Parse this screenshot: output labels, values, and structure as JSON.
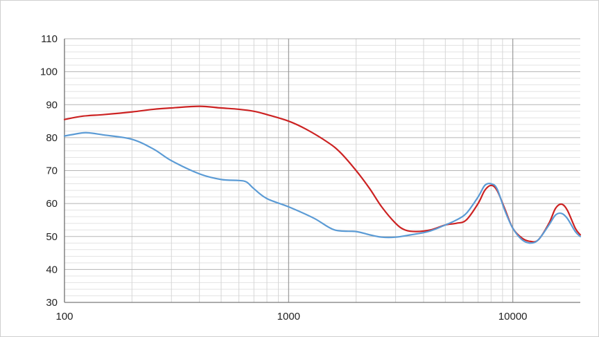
{
  "chart_data": {
    "type": "line",
    "title": "",
    "xlabel": "",
    "ylabel": "",
    "x_scale": "log",
    "xlim": [
      100,
      20000
    ],
    "ylim": [
      30,
      110
    ],
    "y_ticks": [
      30,
      40,
      50,
      60,
      70,
      80,
      90,
      100,
      110
    ],
    "y_tick_labels": [
      "30",
      "40",
      "50",
      "60",
      "70",
      "80",
      "90",
      "100",
      "110"
    ],
    "x_major_ticks": [
      100,
      1000,
      10000
    ],
    "x_tick_labels": [
      "100",
      "1000",
      "10000"
    ],
    "x_minor_ticks": [
      200,
      300,
      400,
      500,
      600,
      700,
      800,
      900,
      2000,
      3000,
      4000,
      5000,
      6000,
      7000,
      8000,
      9000,
      20000
    ],
    "y_minor_step": 2,
    "grid": true,
    "legend": "none",
    "series": [
      {
        "color": "#cc2222",
        "points": [
          [
            100,
            85.5
          ],
          [
            120,
            86.5
          ],
          [
            150,
            87.0
          ],
          [
            200,
            87.8
          ],
          [
            250,
            88.6
          ],
          [
            300,
            89.0
          ],
          [
            400,
            89.5
          ],
          [
            500,
            89.0
          ],
          [
            600,
            88.6
          ],
          [
            700,
            88.0
          ],
          [
            800,
            87.0
          ],
          [
            1000,
            85.0
          ],
          [
            1200,
            82.5
          ],
          [
            1500,
            78.5
          ],
          [
            1700,
            75.5
          ],
          [
            2000,
            70.0
          ],
          [
            2300,
            64.5
          ],
          [
            2600,
            59.0
          ],
          [
            3000,
            54.0
          ],
          [
            3300,
            52.0
          ],
          [
            3700,
            51.5
          ],
          [
            4300,
            52.0
          ],
          [
            5000,
            53.5
          ],
          [
            5600,
            54.0
          ],
          [
            6200,
            55.0
          ],
          [
            7000,
            60.0
          ],
          [
            7500,
            64.0
          ],
          [
            8000,
            65.5
          ],
          [
            8500,
            64.0
          ],
          [
            9200,
            58.5
          ],
          [
            10000,
            52.5
          ],
          [
            11000,
            49.5
          ],
          [
            12000,
            48.5
          ],
          [
            13000,
            49.0
          ],
          [
            14500,
            54.0
          ],
          [
            15500,
            58.5
          ],
          [
            16500,
            59.8
          ],
          [
            17500,
            58.0
          ],
          [
            19000,
            52.5
          ],
          [
            20000,
            50.5
          ]
        ]
      },
      {
        "color": "#5b9bd5",
        "points": [
          [
            100,
            80.5
          ],
          [
            110,
            81.0
          ],
          [
            125,
            81.5
          ],
          [
            150,
            80.8
          ],
          [
            200,
            79.5
          ],
          [
            250,
            76.5
          ],
          [
            300,
            73.0
          ],
          [
            400,
            69.0
          ],
          [
            500,
            67.3
          ],
          [
            600,
            67.0
          ],
          [
            650,
            66.5
          ],
          [
            700,
            64.5
          ],
          [
            800,
            61.5
          ],
          [
            1000,
            59.0
          ],
          [
            1300,
            55.5
          ],
          [
            1600,
            52.0
          ],
          [
            2000,
            51.5
          ],
          [
            2300,
            50.5
          ],
          [
            2600,
            49.8
          ],
          [
            3000,
            49.8
          ],
          [
            3500,
            50.5
          ],
          [
            4200,
            51.5
          ],
          [
            5000,
            53.5
          ],
          [
            5600,
            55.0
          ],
          [
            6200,
            57.0
          ],
          [
            7000,
            62.0
          ],
          [
            7500,
            65.5
          ],
          [
            8000,
            66.0
          ],
          [
            8500,
            64.5
          ],
          [
            9200,
            58.0
          ],
          [
            10000,
            52.5
          ],
          [
            11000,
            49.0
          ],
          [
            12000,
            48.0
          ],
          [
            13000,
            49.0
          ],
          [
            14500,
            53.5
          ],
          [
            15500,
            56.5
          ],
          [
            16500,
            57.0
          ],
          [
            17500,
            55.5
          ],
          [
            19000,
            51.5
          ],
          [
            20000,
            50.0
          ]
        ]
      }
    ]
  }
}
